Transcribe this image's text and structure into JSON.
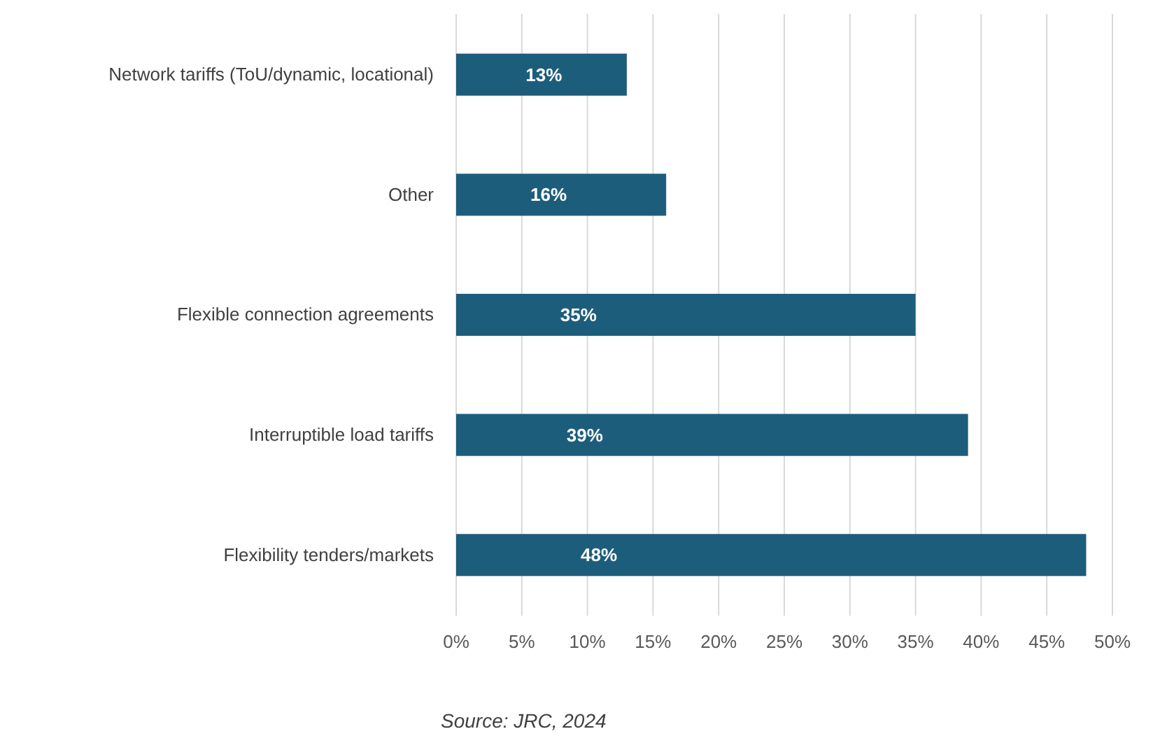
{
  "chart_data": {
    "type": "bar",
    "orientation": "horizontal",
    "categories": [
      "Network tariffs (ToU/dynamic, locational)",
      "Other",
      "Flexible connection agreements",
      "Interruptible load tariffs",
      "Flexibility tenders/markets"
    ],
    "values": [
      13,
      16,
      35,
      39,
      48
    ],
    "value_labels": [
      "13%",
      "16%",
      "35%",
      "39%",
      "48%"
    ],
    "color": "#1d5d7c",
    "xlim": [
      0,
      50
    ],
    "xticks": [
      {
        "value": 0,
        "label": "0%"
      },
      {
        "value": 5,
        "label": "5%"
      },
      {
        "value": 10,
        "label": "10%"
      },
      {
        "value": 15,
        "label": "15%"
      },
      {
        "value": 20,
        "label": "20%"
      },
      {
        "value": 25,
        "label": "25%"
      },
      {
        "value": 30,
        "label": "30%"
      },
      {
        "value": 35,
        "label": "35%"
      },
      {
        "value": 40,
        "label": "40%"
      },
      {
        "value": 45,
        "label": "45%"
      },
      {
        "value": 50,
        "label": "50%"
      }
    ],
    "grid": "x",
    "annotations": [
      "Source: JRC, 2024"
    ]
  }
}
